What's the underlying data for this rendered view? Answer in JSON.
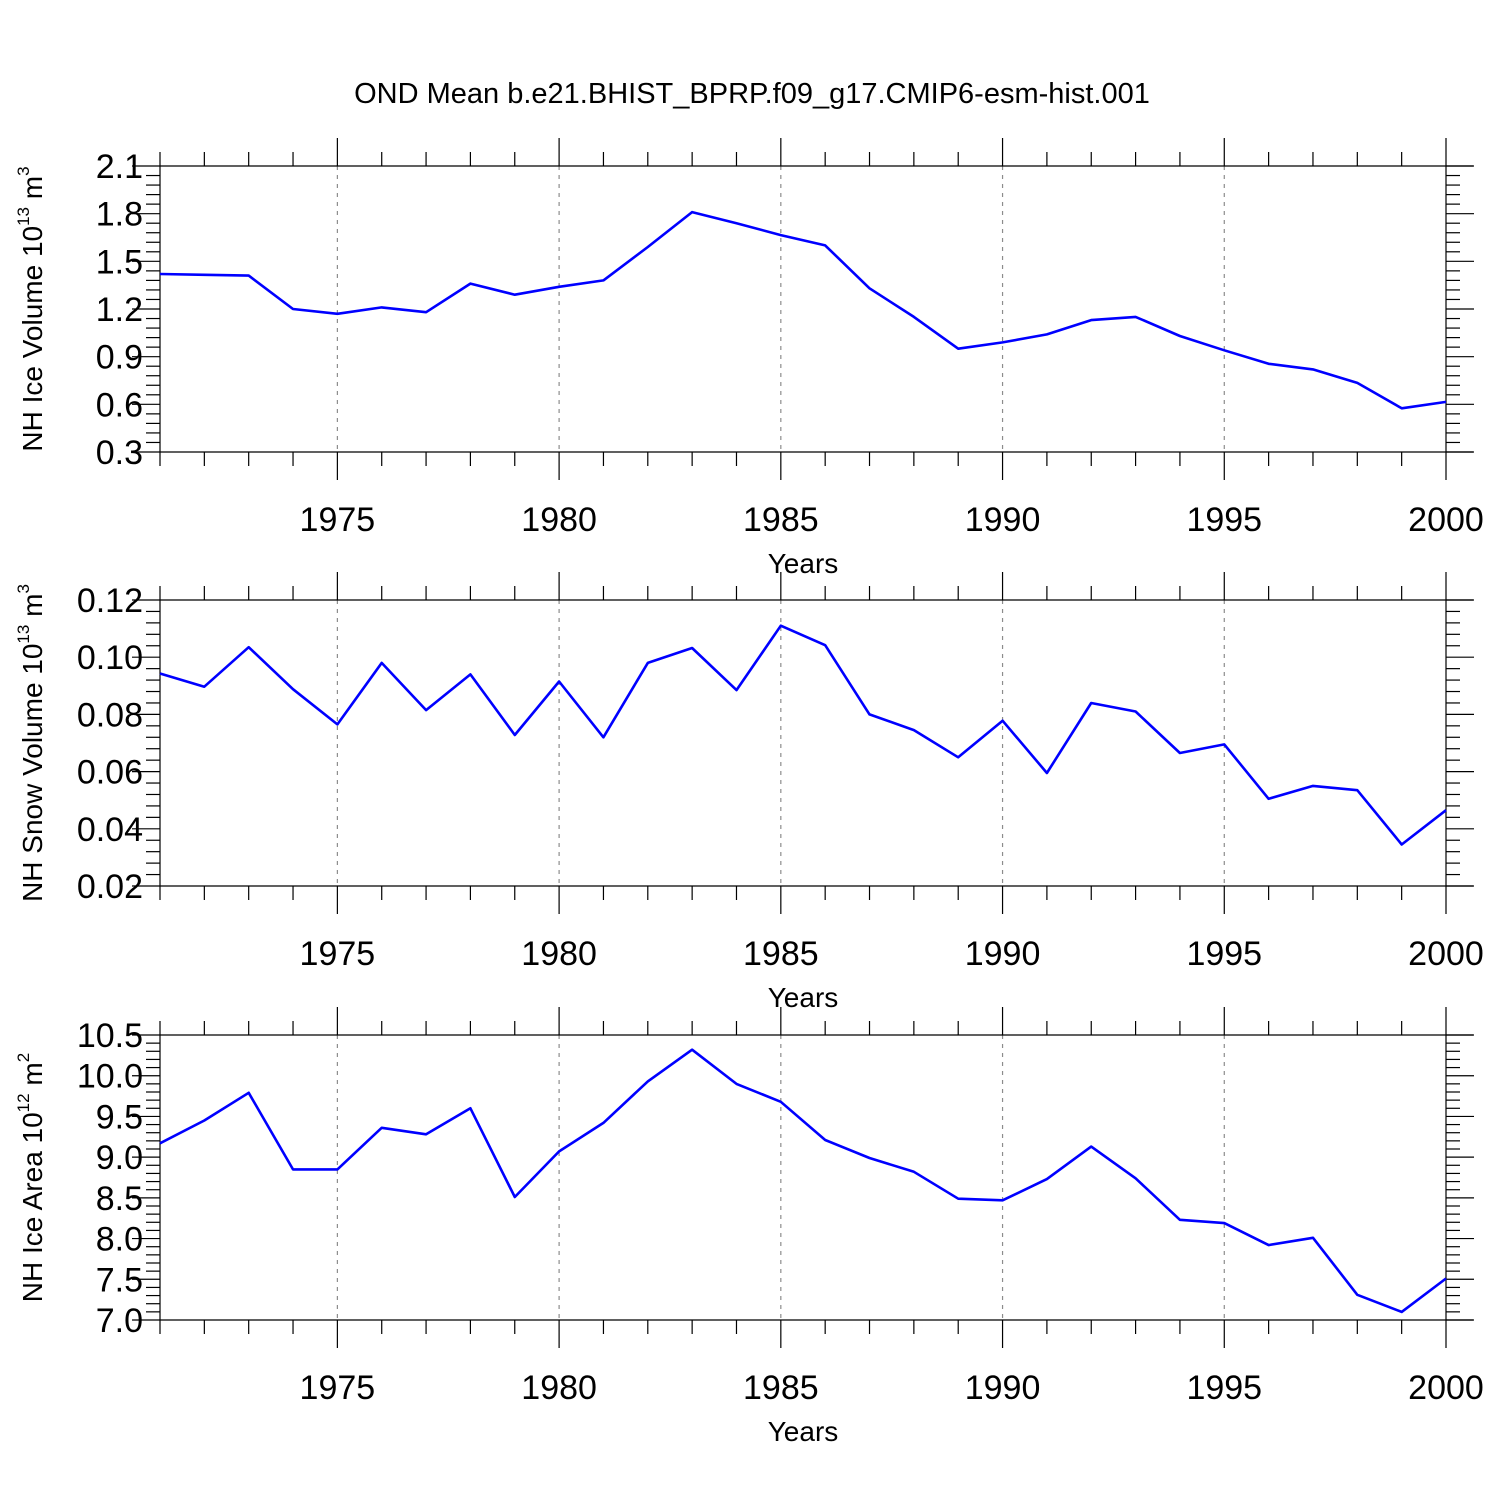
{
  "title": "OND Mean b.e21.BHIST_BPRP.f09_g17.CMIP6-esm-hist.001",
  "colors": {
    "series": "#0000ff",
    "grid": "#8c8c8c",
    "axes": "#000000"
  },
  "chart_data": [
    {
      "type": "line",
      "ylabel": {
        "text": "NH Ice Volume 10",
        "exponent": "13",
        "unit": " m",
        "unit_exponent": "3"
      },
      "xlabel": "Years",
      "xlim": [
        1971,
        2000
      ],
      "ylim": [
        0.3,
        2.1
      ],
      "xticks": [
        1975,
        1980,
        1985,
        1990,
        1995,
        2000
      ],
      "xtick_labels": [
        "1975",
        "1980",
        "1985",
        "1990",
        "1995",
        "2000"
      ],
      "yticks": [
        0.3,
        0.6,
        0.9,
        1.2,
        1.5,
        1.8,
        2.1
      ],
      "ytick_labels": [
        "0.3",
        "0.6",
        "0.9",
        "1.2",
        "1.5",
        "1.8",
        "2.1"
      ],
      "grid": "vertical dashed at labeled years",
      "x": [
        1971,
        1972,
        1973,
        1974,
        1975,
        1976,
        1977,
        1978,
        1979,
        1980,
        1981,
        1982,
        1983,
        1984,
        1985,
        1986,
        1987,
        1988,
        1989,
        1990,
        1991,
        1992,
        1993,
        1994,
        1995,
        1996,
        1997,
        1998,
        1999,
        2000
      ],
      "values": [
        1.42,
        1.415,
        1.41,
        1.2,
        1.17,
        1.21,
        1.18,
        1.36,
        1.29,
        1.34,
        1.38,
        1.59,
        1.81,
        1.74,
        1.665,
        1.6,
        1.33,
        1.15,
        0.95,
        0.99,
        1.04,
        1.13,
        1.15,
        1.03,
        0.94,
        0.855,
        0.82,
        0.735,
        0.575,
        0.615
      ]
    },
    {
      "type": "line",
      "ylabel": {
        "text": "NH Snow Volume 10",
        "exponent": "13",
        "unit": " m",
        "unit_exponent": "3"
      },
      "xlabel": "Years",
      "xlim": [
        1971,
        2000
      ],
      "ylim": [
        0.02,
        0.12
      ],
      "xticks": [
        1975,
        1980,
        1985,
        1990,
        1995,
        2000
      ],
      "xtick_labels": [
        "1975",
        "1980",
        "1985",
        "1990",
        "1995",
        "2000"
      ],
      "yticks": [
        0.02,
        0.04,
        0.06,
        0.08,
        0.1,
        0.12
      ],
      "ytick_labels": [
        "0.02",
        "0.04",
        "0.06",
        "0.08",
        "0.10",
        "0.12"
      ],
      "grid": "vertical dashed at labeled years",
      "x": [
        1971,
        1972,
        1973,
        1974,
        1975,
        1976,
        1977,
        1978,
        1979,
        1980,
        1981,
        1982,
        1983,
        1984,
        1985,
        1986,
        1987,
        1988,
        1989,
        1990,
        1991,
        1992,
        1993,
        1994,
        1995,
        1996,
        1997,
        1998,
        1999,
        2000
      ],
      "values": [
        0.0943,
        0.0897,
        0.1035,
        0.0888,
        0.0765,
        0.098,
        0.0815,
        0.094,
        0.0728,
        0.0915,
        0.072,
        0.098,
        0.1032,
        0.0885,
        0.111,
        0.1042,
        0.08,
        0.0745,
        0.065,
        0.0778,
        0.0595,
        0.084,
        0.081,
        0.0665,
        0.0695,
        0.0505,
        0.055,
        0.0535,
        0.0345,
        0.0465
      ]
    },
    {
      "type": "line",
      "ylabel": {
        "text": "NH Ice Area 10",
        "exponent": "12",
        "unit": " m",
        "unit_exponent": "2"
      },
      "xlabel": "Years",
      "xlim": [
        1971,
        2000
      ],
      "ylim": [
        7.0,
        10.5
      ],
      "xticks": [
        1975,
        1980,
        1985,
        1990,
        1995,
        2000
      ],
      "xtick_labels": [
        "1975",
        "1980",
        "1985",
        "1990",
        "1995",
        "2000"
      ],
      "yticks": [
        7.0,
        7.5,
        8.0,
        8.5,
        9.0,
        9.5,
        10.0,
        10.5
      ],
      "ytick_labels": [
        "7.0",
        "7.5",
        "8.0",
        "8.5",
        "9.0",
        "9.5",
        "10.0",
        "10.5"
      ],
      "grid": "vertical dashed at labeled years",
      "x": [
        1971,
        1972,
        1973,
        1974,
        1975,
        1976,
        1977,
        1978,
        1979,
        1980,
        1981,
        1982,
        1983,
        1984,
        1985,
        1986,
        1987,
        1988,
        1989,
        1990,
        1991,
        1992,
        1993,
        1994,
        1995,
        1996,
        1997,
        1998,
        1999,
        2000
      ],
      "values": [
        9.17,
        9.45,
        9.79,
        8.85,
        8.85,
        9.36,
        9.28,
        9.6,
        8.51,
        9.07,
        9.42,
        9.93,
        10.32,
        9.9,
        9.68,
        9.21,
        8.99,
        8.82,
        8.49,
        8.47,
        8.73,
        9.13,
        8.74,
        8.23,
        8.19,
        7.92,
        8.01,
        7.31,
        7.1,
        7.51
      ]
    }
  ]
}
